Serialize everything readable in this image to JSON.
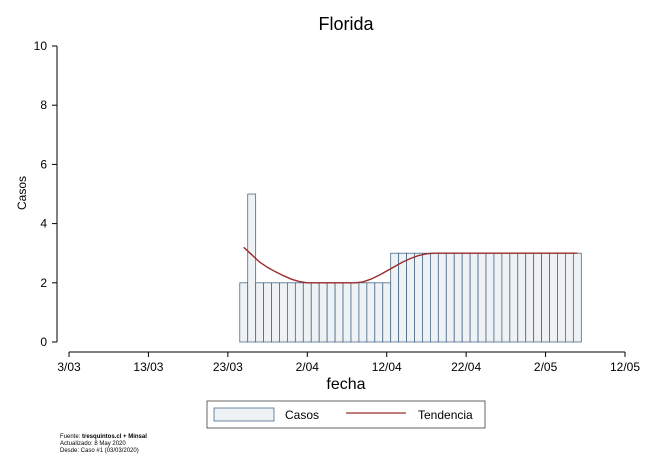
{
  "chart_data": {
    "type": "bar",
    "title": "Florida",
    "xlabel": "fecha",
    "ylabel": "Casos",
    "ylim": [
      0,
      10
    ],
    "yticks": [
      "0",
      "2",
      "4",
      "6",
      "8",
      "10"
    ],
    "xlim": [
      "2020-03-03",
      "2020-05-12"
    ],
    "xticks": [
      "3/03",
      "13/03",
      "23/03",
      "2/04",
      "12/04",
      "22/04",
      "2/05",
      "12/05"
    ],
    "series": [
      {
        "name": "Casos",
        "type": "bar",
        "color": "#eef2f4",
        "edgecolor": "#4a6a8a",
        "start": "2020-03-25",
        "values": [
          2,
          5,
          2,
          2,
          2,
          2,
          2,
          2,
          2,
          2,
          2,
          2,
          2,
          2,
          2,
          2,
          2,
          2,
          2,
          3,
          3,
          3,
          3,
          3,
          3,
          3,
          3,
          3,
          3,
          3,
          3,
          3,
          3,
          3,
          3,
          3,
          3,
          3,
          3,
          3,
          3,
          3,
          3
        ]
      },
      {
        "name": "Tendencia",
        "type": "line",
        "color": "#9b2c2c",
        "points": [
          [
            "2020-03-25",
            3.2
          ],
          [
            "2020-03-26",
            2.95
          ],
          [
            "2020-03-27",
            2.7
          ],
          [
            "2020-03-28",
            2.52
          ],
          [
            "2020-03-29",
            2.37
          ],
          [
            "2020-03-30",
            2.24
          ],
          [
            "2020-03-31",
            2.12
          ],
          [
            "2020-04-01",
            2.04
          ],
          [
            "2020-04-02",
            2.0
          ],
          [
            "2020-04-05",
            2.0
          ],
          [
            "2020-04-08",
            2.0
          ],
          [
            "2020-04-09",
            2.03
          ],
          [
            "2020-04-10",
            2.12
          ],
          [
            "2020-04-11",
            2.25
          ],
          [
            "2020-04-12",
            2.4
          ],
          [
            "2020-04-13",
            2.55
          ],
          [
            "2020-04-14",
            2.7
          ],
          [
            "2020-04-15",
            2.82
          ],
          [
            "2020-04-16",
            2.92
          ],
          [
            "2020-04-17",
            2.98
          ],
          [
            "2020-04-18",
            3.0
          ],
          [
            "2020-04-25",
            3.0
          ],
          [
            "2020-05-02",
            3.0
          ],
          [
            "2020-05-06",
            3.0
          ]
        ]
      }
    ],
    "legend": {
      "position": "bottom",
      "entries": [
        "Casos",
        "Tendencia"
      ]
    },
    "grid": false
  },
  "source": {
    "line1_prefix": "Fuente: ",
    "line1_bold": "tresquintos.cl + Minsal",
    "line2": "Actualizado: 8 May 2020",
    "line3": "Desde: Caso #1  (03/03/2020)"
  }
}
